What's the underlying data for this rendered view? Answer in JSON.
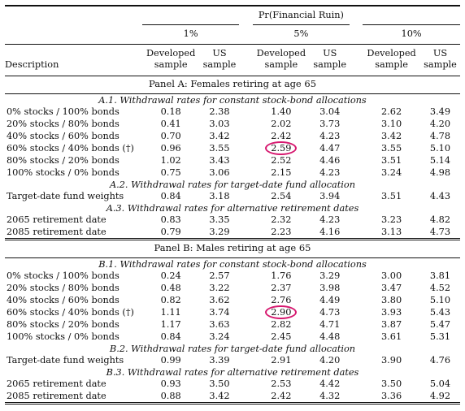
{
  "header": {
    "super_title": "Pr(Financial Ruin)",
    "groups": [
      "1%",
      "5%",
      "10%"
    ],
    "col_developed": [
      "Developed",
      "sample"
    ],
    "col_us": [
      "US",
      "sample"
    ],
    "description_label": "Description"
  },
  "panels": [
    {
      "title": "Panel A: Females retiring at age 65",
      "sections": [
        {
          "title": "A.1.  Withdrawal rates for constant stock-bond allocations",
          "rows": [
            {
              "label": "0% stocks / 100% bonds",
              "values": [
                "0.18",
                "2.38",
                "1.40",
                "3.04",
                "2.62",
                "3.49"
              ]
            },
            {
              "label": "20% stocks / 80% bonds",
              "values": [
                "0.41",
                "3.03",
                "2.02",
                "3.73",
                "3.10",
                "4.20"
              ]
            },
            {
              "label": "40% stocks / 60% bonds",
              "values": [
                "0.70",
                "3.42",
                "2.42",
                "4.23",
                "3.42",
                "4.78"
              ]
            },
            {
              "label": "60% stocks / 40% bonds (†)",
              "values": [
                "0.96",
                "3.55",
                "2.59",
                "4.47",
                "3.55",
                "5.10"
              ],
              "circled_index": 2
            },
            {
              "label": "80% stocks / 20% bonds",
              "values": [
                "1.02",
                "3.43",
                "2.52",
                "4.46",
                "3.51",
                "5.14"
              ]
            },
            {
              "label": "100% stocks / 0% bonds",
              "values": [
                "0.75",
                "3.06",
                "2.15",
                "4.23",
                "3.24",
                "4.98"
              ]
            }
          ]
        },
        {
          "title": "A.2.  Withdrawal rates for target-date fund allocation",
          "rows": [
            {
              "label": "Target-date fund weights",
              "values": [
                "0.84",
                "3.18",
                "2.54",
                "3.94",
                "3.51",
                "4.43"
              ]
            }
          ]
        },
        {
          "title": "A.3.  Withdrawal rates for alternative retirement dates",
          "rows": [
            {
              "label": "2065 retirement date",
              "values": [
                "0.83",
                "3.35",
                "2.32",
                "4.23",
                "3.23",
                "4.82"
              ]
            },
            {
              "label": "2085 retirement date",
              "values": [
                "0.79",
                "3.29",
                "2.23",
                "4.16",
                "3.13",
                "4.73"
              ]
            }
          ]
        }
      ]
    },
    {
      "title": "Panel B: Males retiring at age 65",
      "sections": [
        {
          "title": "B.1.  Withdrawal rates for constant stock-bond allocations",
          "rows": [
            {
              "label": "0% stocks / 100% bonds",
              "values": [
                "0.24",
                "2.57",
                "1.76",
                "3.29",
                "3.00",
                "3.81"
              ]
            },
            {
              "label": "20% stocks / 80% bonds",
              "values": [
                "0.48",
                "3.22",
                "2.37",
                "3.98",
                "3.47",
                "4.52"
              ]
            },
            {
              "label": "40% stocks / 60% bonds",
              "values": [
                "0.82",
                "3.62",
                "2.76",
                "4.49",
                "3.80",
                "5.10"
              ]
            },
            {
              "label": "60% stocks / 40% bonds (†)",
              "values": [
                "1.11",
                "3.74",
                "2.90",
                "4.73",
                "3.93",
                "5.43"
              ],
              "circled_index": 2
            },
            {
              "label": "80% stocks / 20% bonds",
              "values": [
                "1.17",
                "3.63",
                "2.82",
                "4.71",
                "3.87",
                "5.47"
              ]
            },
            {
              "label": "100% stocks / 0% bonds",
              "values": [
                "0.84",
                "3.24",
                "2.45",
                "4.48",
                "3.61",
                "5.31"
              ]
            }
          ]
        },
        {
          "title": "B.2.  Withdrawal rates for target-date fund allocation",
          "rows": [
            {
              "label": "Target-date fund weights",
              "values": [
                "0.99",
                "3.39",
                "2.91",
                "4.20",
                "3.90",
                "4.76"
              ]
            }
          ]
        },
        {
          "title": "B.3.  Withdrawal rates for alternative retirement dates",
          "rows": [
            {
              "label": "2065 retirement date",
              "values": [
                "0.93",
                "3.50",
                "2.53",
                "4.42",
                "3.50",
                "5.04"
              ]
            },
            {
              "label": "2085 retirement date",
              "values": [
                "0.88",
                "3.42",
                "2.42",
                "4.32",
                "3.36",
                "4.92"
              ]
            }
          ]
        }
      ]
    }
  ],
  "colors": {
    "circle": "#d6186f",
    "text": "#111111"
  }
}
